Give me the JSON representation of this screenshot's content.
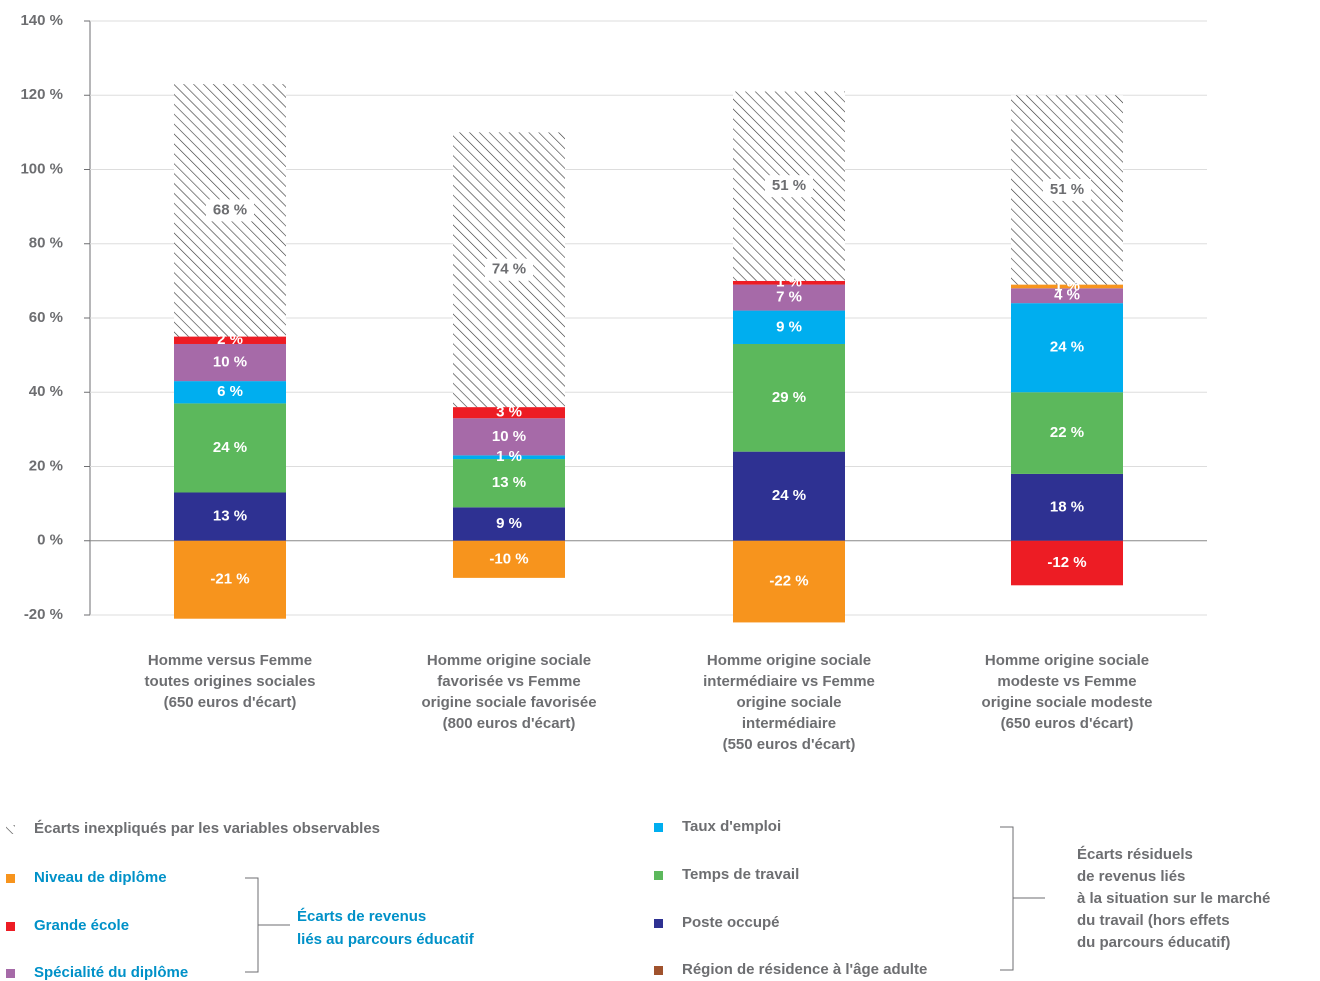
{
  "chart_data": {
    "type": "stacked-bar",
    "categories": [
      "Homme versus Femme\ntoutes origines sociales\n(650 euros d'écart)",
      "Homme origine sociale\nfavorisée vs Femme\norigine sociale favorisée\n(800 euros d'écart)",
      "Homme origine sociale\nintermédiaire vs Femme\norigine sociale\nintermédiaire\n(550 euros d'écart)",
      "Homme origine sociale\nmodeste vs Femme\norigine sociale modeste\n(650 euros d'écart)"
    ],
    "series": [
      {
        "name": "Poste occupé",
        "color": "#2e3192",
        "values": [
          13,
          9,
          24,
          18
        ],
        "value_labels": [
          "13 %",
          "9 %",
          "24 %",
          "18 %"
        ]
      },
      {
        "name": "Temps de travail",
        "color": "#5cb85c",
        "values": [
          24,
          13,
          29,
          22
        ],
        "value_labels": [
          "24 %",
          "13 %",
          "29 %",
          "22 %"
        ]
      },
      {
        "name": "Taux d'emploi",
        "color": "#00aeef",
        "values": [
          6,
          1,
          9,
          24
        ],
        "value_labels": [
          "6 %",
          "1 %",
          "9 %",
          "24 %"
        ]
      },
      {
        "name": "Spécialité du diplôme",
        "color": "#a66aa8",
        "values": [
          10,
          10,
          7,
          4
        ],
        "value_labels": [
          "10 %",
          "10 %",
          "7 %",
          "4 %"
        ]
      },
      {
        "name": "Grande école",
        "color": "#ed1c24",
        "values": [
          2,
          3,
          1,
          -12
        ],
        "value_labels": [
          "2 %",
          "3 %",
          "1 %",
          "-12 %"
        ]
      },
      {
        "name": "Niveau de diplôme",
        "color": "#f7941d",
        "values": [
          -21,
          -10,
          -22,
          1
        ],
        "value_labels": [
          "-21 %",
          "-10 %",
          "-22 %",
          "1 %"
        ]
      },
      {
        "name": "Région de résidence à l'âge adulte",
        "color": "#a0522d",
        "values": [
          0,
          0,
          0,
          0
        ]
      },
      {
        "name": "Écarts inexpliqués par les variables observables",
        "color": "#333333",
        "pattern": "hatch",
        "values": [
          68,
          74,
          51,
          51
        ],
        "value_labels": [
          "68 %",
          "74 %",
          "51 %",
          "51 %"
        ]
      }
    ],
    "ylim": [
      -20,
      140
    ],
    "yticks": [
      {
        "value": -20,
        "label": "-20 %"
      },
      {
        "value": 0,
        "label": "0 %"
      },
      {
        "value": 20,
        "label": "20 %"
      },
      {
        "value": 40,
        "label": "40 %"
      },
      {
        "value": 60,
        "label": "60 %"
      },
      {
        "value": 80,
        "label": "80 %"
      },
      {
        "value": 100,
        "label": "100 %"
      },
      {
        "value": 120,
        "label": "120 %"
      },
      {
        "value": 140,
        "label": "140 %"
      }
    ],
    "grid": true,
    "annotations": [
      "Écarts de revenus\nliés au parcours éducatif",
      "Écarts résiduels\nde revenus liés\nà la situation sur le marché\ndu travail (hors effets\ndu parcours éducatif)"
    ]
  }
}
